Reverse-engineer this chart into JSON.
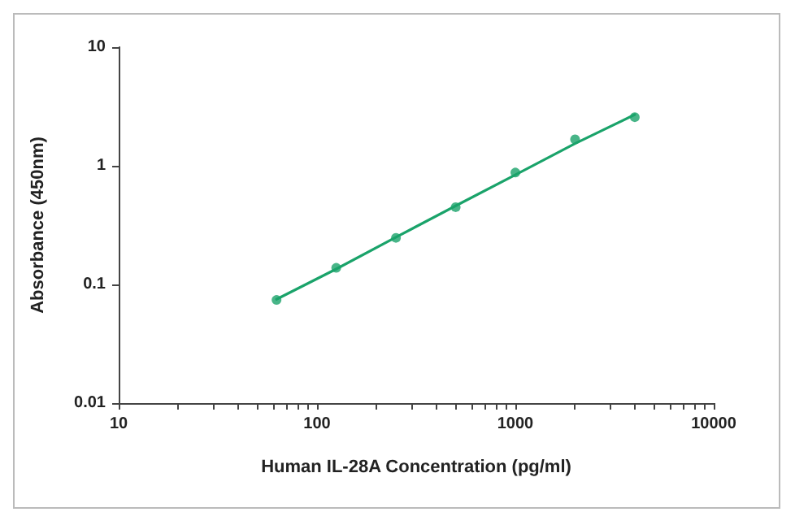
{
  "chart_data": {
    "type": "scatter",
    "xlabel": "Human IL-28A Concentration (pg/ml)",
    "ylabel": "Absorbance (450nm)",
    "log": "xy",
    "xlim": [
      10,
      10000
    ],
    "ylim": [
      0.01,
      10
    ],
    "xticks": [
      10,
      {
        "value": 20,
        "label": null
      },
      {
        "value": 30,
        "label": null
      },
      {
        "value": 40,
        "label": null
      },
      {
        "value": 50,
        "label": null
      },
      {
        "value": 60,
        "label": null
      },
      {
        "value": 70,
        "label": null
      },
      {
        "value": 80,
        "label": null
      },
      {
        "value": 90,
        "label": null
      },
      100,
      {
        "value": 200,
        "label": null
      },
      {
        "value": 300,
        "label": null
      },
      {
        "value": 400,
        "label": null
      },
      {
        "value": 500,
        "label": null
      },
      {
        "value": 600,
        "label": null
      },
      {
        "value": 700,
        "label": null
      },
      {
        "value": 800,
        "label": null
      },
      {
        "value": 900,
        "label": null
      },
      1000,
      {
        "value": 2000,
        "label": null
      },
      {
        "value": 3000,
        "label": null
      },
      {
        "value": 4000,
        "label": null
      },
      {
        "value": 5000,
        "label": null
      },
      {
        "value": 6000,
        "label": null
      },
      {
        "value": 7000,
        "label": null
      },
      {
        "value": 8000,
        "label": null
      },
      {
        "value": 9000,
        "label": null
      },
      10000
    ],
    "yticks": [
      0.01,
      0.1,
      1,
      10
    ],
    "grid": false,
    "marker": "circle",
    "x": [
      62.5,
      125,
      250,
      500,
      1000,
      2000,
      4000
    ],
    "series": [
      {
        "color": "#1aa36a",
        "values": [
          0.074,
          0.138,
          0.247,
          0.448,
          0.877,
          1.67,
          2.57
        ]
      },
      {
        "type": "line",
        "color": "#1aa36a",
        "marker": "none",
        "line_style": "solid",
        "x": [
          62.5,
          125,
          250,
          500,
          1000,
          2000,
          4000
        ],
        "values": [
          0.075,
          0.135,
          0.25,
          0.46,
          0.84,
          1.54,
          2.7
        ]
      }
    ]
  }
}
